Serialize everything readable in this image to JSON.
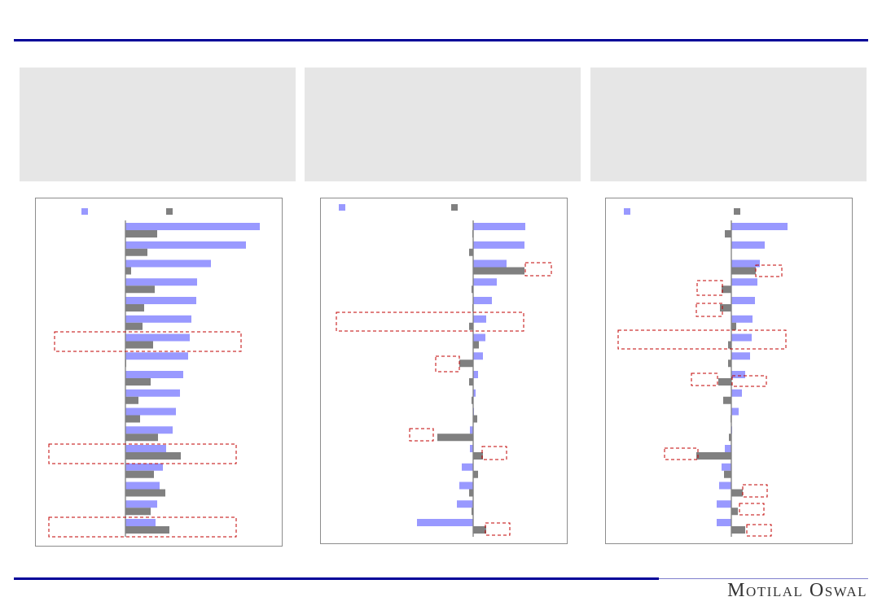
{
  "brand": {
    "logo_text": "Motilal Oswal",
    "accent": "#000099"
  },
  "colors": {
    "series_a": "#9999ff",
    "series_b": "#808080",
    "highlight": "#c00000",
    "panel": "#e6e6e6"
  },
  "chart_data": [
    {
      "type": "bar",
      "orientation": "horizontal",
      "grid": false,
      "legend": "top",
      "series": [
        {
          "color": "#9999ff",
          "values": [
            165,
            148,
            105,
            88,
            87,
            81,
            79,
            77,
            71,
            67,
            62,
            58,
            50,
            46,
            42,
            39,
            37
          ]
        },
        {
          "color": "#808080",
          "values": [
            39,
            27,
            7,
            36,
            23,
            21,
            34,
            1,
            31,
            16,
            18,
            40,
            68,
            35,
            49,
            31,
            54
          ]
        }
      ],
      "highlighted_rows": [
        7,
        13,
        17
      ]
    },
    {
      "type": "bar",
      "orientation": "horizontal",
      "grid": false,
      "legend": "top",
      "series": [
        {
          "color": "#9999ff",
          "values": [
            64,
            63,
            41,
            29,
            23,
            16,
            15,
            12,
            6,
            3,
            1,
            -4,
            -4,
            -14,
            -17,
            -20,
            -69
          ]
        },
        {
          "color": "#808080",
          "values": [
            -1,
            -5,
            63,
            -2,
            -1,
            -5,
            7,
            -17,
            -5,
            -2,
            5,
            -44,
            12,
            6,
            -5,
            -2,
            16
          ]
        }
      ],
      "highlighted_rows": [
        3,
        6,
        8,
        12,
        13,
        17
      ]
    },
    {
      "type": "bar",
      "orientation": "horizontal",
      "grid": false,
      "legend": "top",
      "series": [
        {
          "color": "#9999ff",
          "values": [
            69,
            41,
            35,
            32,
            29,
            26,
            25,
            23,
            17,
            13,
            9,
            1,
            -8,
            -12,
            -15,
            -18,
            -18
          ]
        },
        {
          "color": "#808080",
          "values": [
            -8,
            0,
            30,
            -12,
            -14,
            6,
            -4,
            -4,
            -16,
            -10,
            -1,
            -3,
            -43,
            -9,
            14,
            8,
            17
          ]
        }
      ],
      "highlighted_rows": [
        3,
        4,
        5,
        7,
        9,
        13,
        15,
        16,
        17
      ]
    }
  ]
}
